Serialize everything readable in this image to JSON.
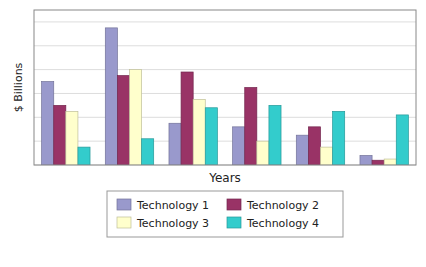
{
  "chart_data": {
    "type": "bar",
    "xlabel": "Years",
    "ylabel": "$ Billions",
    "categories": [
      null,
      null,
      null,
      null,
      null,
      null
    ],
    "series": [
      {
        "name": "Technology 1",
        "color": "#9999cc",
        "values": [
          7.0,
          11.5,
          3.5,
          3.2,
          2.5,
          0.8
        ]
      },
      {
        "name": "Technology 2",
        "color": "#993366",
        "values": [
          5.0,
          7.5,
          7.8,
          6.5,
          3.2,
          0.4
        ]
      },
      {
        "name": "Technology 3",
        "color": "#ffffcc",
        "values": [
          4.5,
          8.0,
          5.5,
          2.0,
          1.5,
          0.5
        ]
      },
      {
        "name": "Technology 4",
        "color": "#33cccc",
        "values": [
          1.5,
          2.2,
          4.8,
          5.0,
          4.5,
          4.2
        ]
      }
    ],
    "ylim": [
      0,
      13
    ],
    "yticks": [
      0,
      2,
      4,
      6,
      8,
      10,
      12
    ],
    "grid": true,
    "tick_labels": false,
    "legend": "bottom"
  }
}
